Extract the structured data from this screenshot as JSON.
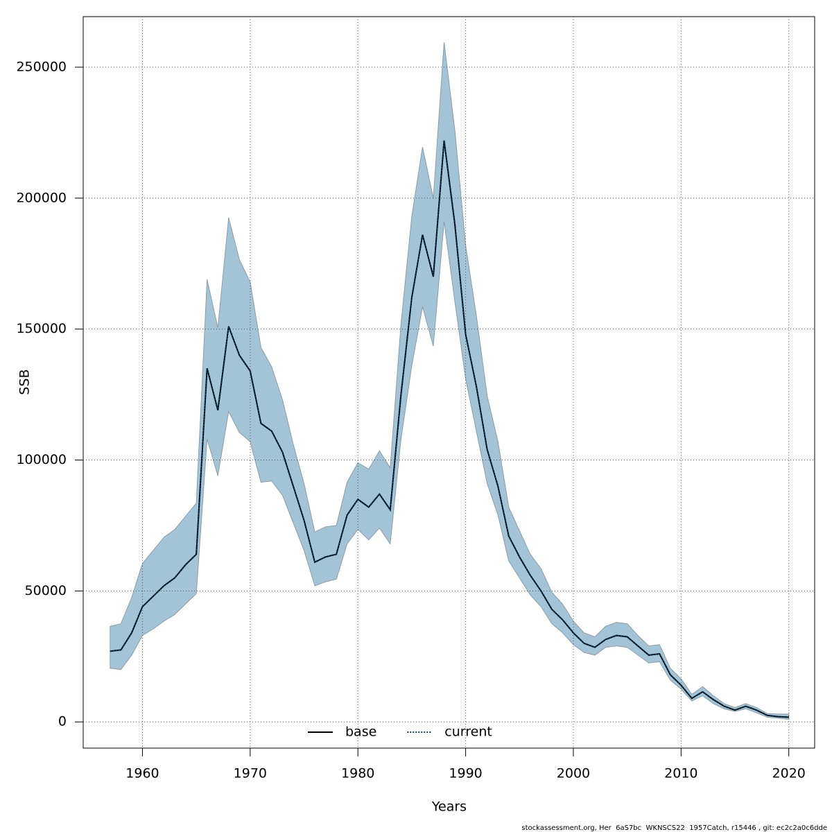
{
  "chart_data": {
    "type": "line",
    "xlabel": "Years",
    "ylabel": "SSB",
    "footnote": "stockassessment.org, Her  6aS7bc  WKNSCS22  1957Catch, r15446 , git: ec2c2a0c6dde",
    "x": [
      1957,
      1958,
      1959,
      1960,
      1961,
      1962,
      1963,
      1964,
      1965,
      1966,
      1967,
      1968,
      1969,
      1970,
      1971,
      1972,
      1973,
      1974,
      1975,
      1976,
      1977,
      1978,
      1979,
      1980,
      1981,
      1982,
      1983,
      1984,
      1985,
      1986,
      1987,
      1988,
      1989,
      1990,
      1991,
      1992,
      1993,
      1994,
      1995,
      1996,
      1997,
      1998,
      1999,
      2000,
      2001,
      2002,
      2003,
      2004,
      2005,
      2006,
      2007,
      2008,
      2009,
      2010,
      2011,
      2012,
      2013,
      2014,
      2015,
      2016,
      2017,
      2018,
      2019,
      2020
    ],
    "band": {
      "color": "#a3c4d6",
      "upper": [
        36500,
        37500,
        47500,
        60500,
        65500,
        70500,
        73500,
        78500,
        83500,
        169000,
        150500,
        192500,
        176500,
        168000,
        143000,
        135500,
        123000,
        106000,
        91000,
        72500,
        74500,
        75000,
        91500,
        99000,
        96500,
        103500,
        97000,
        152000,
        193000,
        219500,
        200000,
        259500,
        226000,
        182000,
        155000,
        124500,
        107000,
        82000,
        73000,
        64000,
        58500,
        49500,
        45000,
        38500,
        34000,
        32500,
        36500,
        38000,
        37500,
        33000,
        29000,
        29500,
        20500,
        16500,
        10500,
        13500,
        10000,
        7000,
        5500,
        7000,
        5500,
        3200,
        3000,
        3000
      ],
      "lower": [
        20500,
        20000,
        25500,
        33000,
        35500,
        38500,
        41000,
        45000,
        49000,
        108000,
        94000,
        118500,
        110500,
        107000,
        91500,
        92000,
        86500,
        76000,
        65500,
        52000,
        53500,
        54500,
        68000,
        73500,
        69500,
        74000,
        68000,
        108000,
        136000,
        158500,
        143500,
        191000,
        160500,
        131000,
        111000,
        91000,
        79000,
        61500,
        55000,
        48500,
        44000,
        37500,
        34000,
        29500,
        26500,
        25500,
        28500,
        29000,
        28500,
        25500,
        22500,
        23000,
        16000,
        12500,
        8000,
        10000,
        7000,
        5000,
        4000,
        5000,
        3500,
        1800,
        1400,
        1000
      ]
    },
    "series": [
      {
        "name": "base",
        "color": "#000000",
        "dash": "solid",
        "values": [
          27000,
          27500,
          34000,
          44000,
          48000,
          52000,
          55000,
          60000,
          64000,
          135000,
          119000,
          151000,
          140000,
          134000,
          114000,
          111000,
          103000,
          90000,
          77000,
          61000,
          63000,
          64000,
          79000,
          85000,
          82000,
          87000,
          81000,
          125000,
          162000,
          186000,
          170000,
          222000,
          190000,
          148000,
          128000,
          104000,
          90000,
          71000,
          63000,
          56000,
          50000,
          43000,
          39000,
          34000,
          30000,
          28500,
          31500,
          33000,
          32500,
          29000,
          25500,
          26000,
          18000,
          14000,
          9000,
          11500,
          8500,
          6000,
          4500,
          6000,
          4500,
          2500,
          2000,
          1800
        ]
      },
      {
        "name": "current",
        "color": "#003a5c",
        "dash": "dotted",
        "values": [
          27000,
          27500,
          34000,
          44000,
          48000,
          52000,
          55000,
          60000,
          64000,
          135000,
          119000,
          151000,
          140000,
          134000,
          114000,
          111000,
          103000,
          90000,
          77000,
          61000,
          63000,
          64000,
          79000,
          85000,
          82000,
          87000,
          81000,
          125000,
          162000,
          186000,
          170000,
          222000,
          190000,
          148000,
          128000,
          104000,
          90000,
          71000,
          63000,
          56000,
          50000,
          43000,
          39000,
          34000,
          30000,
          28500,
          31500,
          33000,
          32500,
          29000,
          25500,
          26000,
          18000,
          14000,
          9000,
          11500,
          8500,
          6000,
          4500,
          6000,
          4500,
          2500,
          2000,
          1800
        ]
      }
    ],
    "xlim": [
      1954.5,
      2022.4
    ],
    "ylim": [
      -10000,
      269300
    ],
    "xticks": [
      1960,
      1970,
      1980,
      1990,
      2000,
      2010,
      2020
    ],
    "yticks": [
      0,
      50000,
      100000,
      150000,
      200000,
      250000
    ],
    "grid": true,
    "legend": "bottom"
  }
}
